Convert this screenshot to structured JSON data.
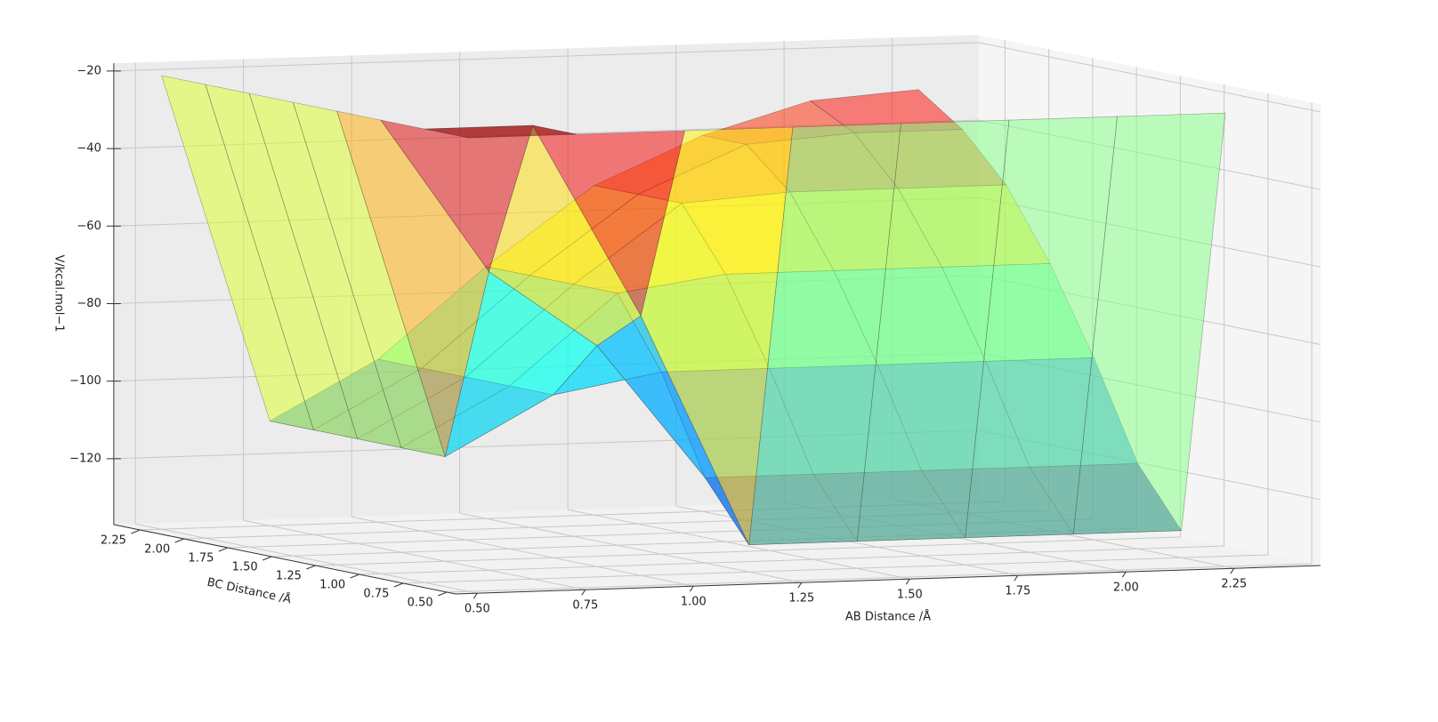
{
  "chart_data": {
    "type": "surface3d",
    "x_label": "AB Distance /Å",
    "y_label": "BC Distance /Å",
    "z_label": "V/kcal.mol−1",
    "colormap": "jet",
    "x": [
      0.5,
      0.75,
      1.0,
      1.25,
      1.5,
      1.75,
      2.0,
      2.25
    ],
    "y": [
      0.5,
      0.75,
      1.0,
      1.25,
      1.5,
      1.75,
      2.0,
      2.25
    ],
    "z": [
      [
        -20,
        -20,
        -20,
        -20,
        -20,
        -20,
        -20,
        -20
      ],
      [
        -20,
        -20,
        -70,
        -130,
        -130,
        -130,
        -130,
        -130
      ],
      [
        -20,
        -60,
        -80,
        -115,
        -115,
        -115,
        -115,
        -115
      ],
      [
        -20,
        -110,
        -95,
        -90,
        -90,
        -90,
        -90,
        -90
      ],
      [
        -20,
        -110,
        -95,
        -72,
        -68,
        -68,
        -68,
        -68
      ],
      [
        -20,
        -110,
        -95,
        -72,
        -52,
        -50,
        -50,
        -50
      ],
      [
        -20,
        -110,
        -95,
        -72,
        -52,
        -40,
        -38,
        -38
      ],
      [
        -20,
        -110,
        -95,
        -72,
        -52,
        -40,
        -32,
        -30
      ]
    ],
    "xlim": [
      0.45,
      2.45
    ],
    "ylim": [
      0.45,
      2.4
    ],
    "zlim": [
      -137,
      -18
    ],
    "xticks": [
      {
        "value": 0.5,
        "label": "0.50"
      },
      {
        "value": 0.75,
        "label": "0.75"
      },
      {
        "value": 1.0,
        "label": "1.00"
      },
      {
        "value": 1.25,
        "label": "1.25"
      },
      {
        "value": 1.5,
        "label": "1.50"
      },
      {
        "value": 1.75,
        "label": "1.75"
      },
      {
        "value": 2.0,
        "label": "2.00"
      },
      {
        "value": 2.25,
        "label": "2.25"
      }
    ],
    "yticks": [
      {
        "value": 0.5,
        "label": "0.50"
      },
      {
        "value": 0.75,
        "label": "0.75"
      },
      {
        "value": 1.0,
        "label": "1.00"
      },
      {
        "value": 1.25,
        "label": "1.25"
      },
      {
        "value": 1.5,
        "label": "1.50"
      },
      {
        "value": 1.75,
        "label": "1.75"
      },
      {
        "value": 2.0,
        "label": "2.00"
      },
      {
        "value": 2.25,
        "label": "2.25"
      }
    ],
    "zticks": [
      {
        "value": -20,
        "label": "−20"
      },
      {
        "value": -40,
        "label": "−40"
      },
      {
        "value": -60,
        "label": "−60"
      },
      {
        "value": -80,
        "label": "−80"
      },
      {
        "value": -100,
        "label": "−100"
      },
      {
        "value": -120,
        "label": "−120"
      }
    ],
    "grid": true
  }
}
